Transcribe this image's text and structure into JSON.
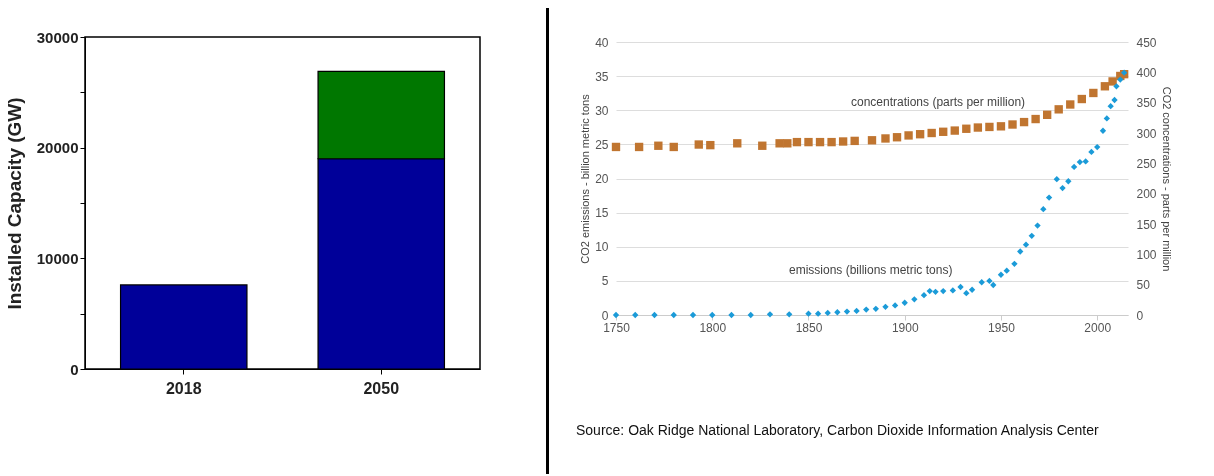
{
  "chart_data": [
    {
      "type": "bar",
      "ylabel": "Installed Capacity (GW)",
      "categories": [
        "2018",
        "2050"
      ],
      "stacked": true,
      "series": [
        {
          "color": "#000099",
          "values": [
            7600,
            19000
          ]
        },
        {
          "color": "#007700",
          "values": [
            null,
            7900
          ]
        }
      ],
      "ylim": [
        0,
        30000
      ],
      "yticks": [
        0,
        {
          "value": 5000,
          "label": null
        },
        10000,
        {
          "value": 15000,
          "label": null
        },
        20000,
        {
          "value": 25000,
          "label": null
        },
        30000
      ]
    },
    {
      "type": "scatter",
      "ylabel": "CO2 emissions - billion metric tons",
      "y2label": "CO2 concentrations - parts per million",
      "grid": "y",
      "series": [
        {
          "name": "concentrations (parts per million)",
          "color": "#c07530",
          "axis": "y2",
          "marker": "square",
          "x": [
            1750,
            1762,
            1772,
            1780,
            1793,
            1799,
            1813,
            1826,
            1835,
            1839,
            1844,
            1850,
            1856,
            1862,
            1868,
            1874,
            1883,
            1890,
            1896,
            1902,
            1908,
            1914,
            1920,
            1926,
            1932,
            1938,
            1944,
            1950,
            1956,
            1962,
            1968,
            1974,
            1980,
            1986,
            1992,
            1998,
            2004,
            2008,
            2012,
            2014
          ],
          "values": [
            277,
            277,
            279,
            277,
            281,
            280,
            283,
            279,
            283,
            283,
            285,
            285,
            285,
            285,
            286,
            287,
            288,
            291,
            293,
            296,
            298,
            300,
            302,
            304,
            307,
            309,
            310,
            311,
            314,
            318,
            323,
            330,
            339,
            347,
            356,
            366,
            377,
            385,
            394,
            397
          ]
        },
        {
          "name": "emissions (billions metric tons)",
          "color": "#1b9bd8",
          "axis": "y",
          "marker": "diamond",
          "x": [
            1750,
            1760,
            1770,
            1780,
            1790,
            1800,
            1810,
            1820,
            1830,
            1840,
            1850,
            1855,
            1860,
            1865,
            1870,
            1875,
            1880,
            1885,
            1890,
            1895,
            1900,
            1905,
            1910,
            1913,
            1916,
            1920,
            1925,
            1929,
            1932,
            1935,
            1940,
            1944,
            1946,
            1950,
            1953,
            1957,
            1960,
            1963,
            1966,
            1969,
            1972,
            1975,
            1979,
            1982,
            1985,
            1988,
            1991,
            1994,
            1997,
            2000,
            2003,
            2005,
            2007,
            2009,
            2010,
            2012,
            2014
          ],
          "values": [
            0,
            0,
            0,
            0,
            0,
            0,
            0,
            0,
            0.1,
            0.1,
            0.2,
            0.2,
            0.3,
            0.4,
            0.5,
            0.6,
            0.8,
            0.9,
            1.2,
            1.4,
            1.8,
            2.3,
            2.9,
            3.5,
            3.4,
            3.5,
            3.6,
            4.1,
            3.2,
            3.7,
            4.8,
            5.0,
            4.4,
            5.9,
            6.5,
            7.5,
            9.3,
            10.3,
            11.6,
            13.1,
            15.5,
            17.2,
            19.9,
            18.6,
            19.6,
            21.7,
            22.4,
            22.5,
            23.9,
            24.6,
            27.0,
            28.8,
            30.6,
            31.5,
            33.5,
            34.5,
            35.5
          ]
        }
      ],
      "xlim": [
        1750,
        2016
      ],
      "xticks": [
        1750,
        1800,
        1850,
        1900,
        1950,
        2000
      ],
      "ylim": [
        0,
        40
      ],
      "yticks": [
        0,
        5,
        10,
        15,
        20,
        25,
        30,
        35,
        40
      ],
      "y2lim": [
        0,
        450
      ],
      "y2ticks": [
        0,
        50,
        100,
        150,
        200,
        250,
        300,
        350,
        400,
        450
      ],
      "annotations": [
        "Source: Oak Ridge National Laboratory, Carbon Dioxide Information Analysis Center"
      ]
    }
  ]
}
